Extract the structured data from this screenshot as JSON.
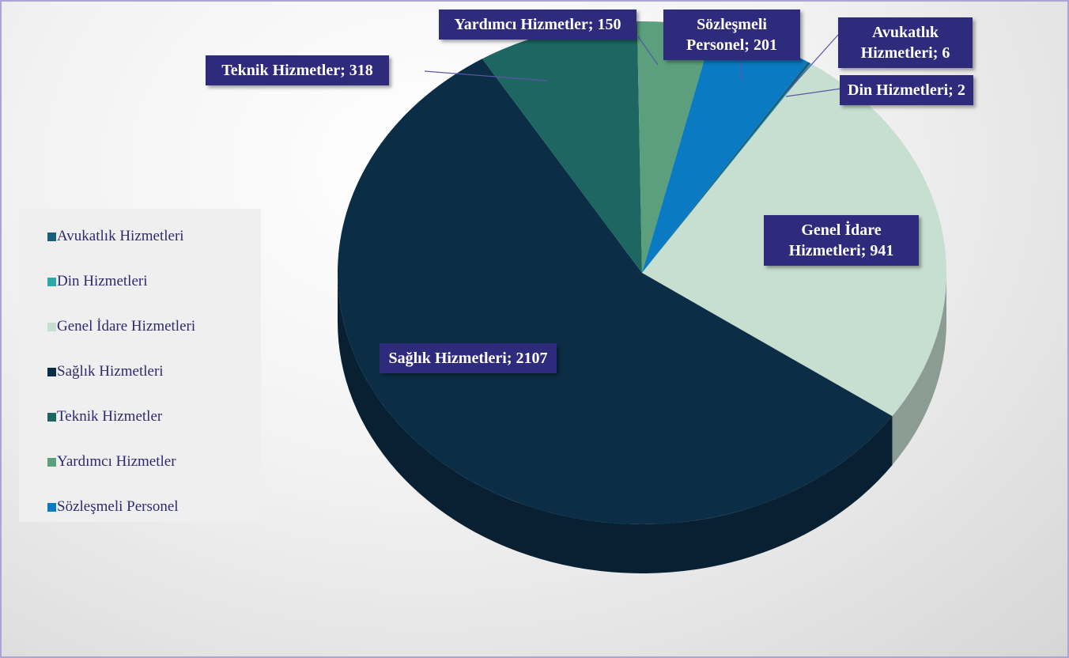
{
  "chart_data": {
    "type": "pie",
    "categories": [
      "Avukatlık Hizmetleri",
      "Din Hizmetleri",
      "Genel İdare Hizmetleri",
      "Sağlık Hizmetleri",
      "Teknik Hizmetler",
      "Yardımcı Hizmetler",
      "Sözleşmeli Personel"
    ],
    "values": [
      6,
      2,
      941,
      2107,
      318,
      150,
      201
    ],
    "value_labels": [
      "Avukatlık Hizmetleri; 6",
      "Din Hizmetleri; 2",
      "Genel İdare Hizmetleri; 941",
      "Sağlık Hizmetleri; 2107",
      "Teknik Hizmetler; 318",
      "Yardımcı Hizmetler; 150",
      "Sözleşmeli Personel; 201"
    ],
    "colors": [
      "#1b5e7c",
      "#2aa9a6",
      "#c6dfd1",
      "#0b2e46",
      "#1d6661",
      "#5b9f7d",
      "#0a7bc3"
    ],
    "legend": "left"
  }
}
